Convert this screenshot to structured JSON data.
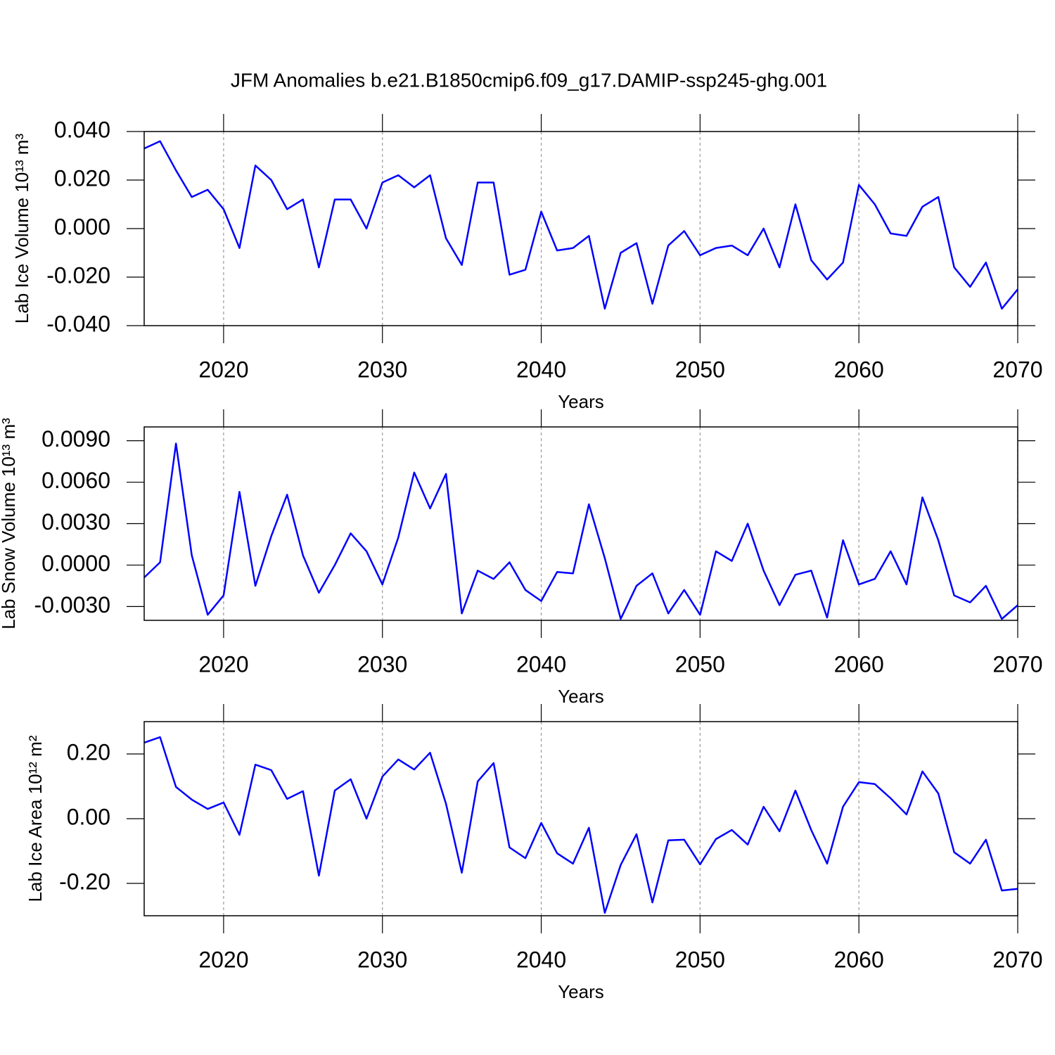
{
  "chart_data": [
    {
      "type": "line",
      "title": "JFM Anomalies b.e21.B1850cmip6.f09_g17.DAMIP-ssp245-ghg.001",
      "xlabel": "Years",
      "ylabel": "Lab Ice Volume 10¹³ m³",
      "color": "#0000ff",
      "grid": true,
      "x": [
        2015,
        2016,
        2017,
        2018,
        2019,
        2020,
        2021,
        2022,
        2023,
        2024,
        2025,
        2026,
        2027,
        2028,
        2029,
        2030,
        2031,
        2032,
        2033,
        2034,
        2035,
        2036,
        2037,
        2038,
        2039,
        2040,
        2041,
        2042,
        2043,
        2044,
        2045,
        2046,
        2047,
        2048,
        2049,
        2050,
        2051,
        2052,
        2053,
        2054,
        2055,
        2056,
        2057,
        2058,
        2059,
        2060,
        2061,
        2062,
        2063,
        2064,
        2065,
        2066,
        2067,
        2068,
        2069,
        2070
      ],
      "values": [
        0.033,
        0.036,
        0.024,
        0.013,
        0.016,
        0.008,
        -0.008,
        0.026,
        0.02,
        0.008,
        0.012,
        -0.016,
        0.012,
        0.012,
        0.0,
        0.019,
        0.022,
        0.017,
        0.022,
        -0.004,
        -0.015,
        0.019,
        0.019,
        -0.019,
        -0.017,
        0.007,
        -0.009,
        -0.008,
        -0.003,
        -0.033,
        -0.01,
        -0.006,
        -0.031,
        -0.007,
        -0.001,
        -0.011,
        -0.008,
        -0.007,
        -0.011,
        0.0,
        -0.016,
        0.01,
        -0.013,
        -0.021,
        -0.014,
        0.018,
        0.01,
        -0.002,
        -0.003,
        0.009,
        0.013,
        -0.016,
        -0.024,
        -0.014,
        -0.033,
        -0.025
      ],
      "xlim": [
        2015,
        2070
      ],
      "xticks": [
        2020,
        2030,
        2040,
        2050,
        2060,
        2070
      ],
      "ylim": [
        -0.04,
        0.04
      ],
      "yticks": [
        {
          "value": 0.04,
          "label": "0.040"
        },
        {
          "value": 0.02,
          "label": "0.020"
        },
        {
          "value": 0,
          "label": "0.000"
        },
        {
          "value": -0.02,
          "label": "-0.020"
        },
        {
          "value": -0.04,
          "label": "-0.040"
        }
      ]
    },
    {
      "type": "line",
      "xlabel": "Years",
      "ylabel": "Lab Snow Volume 10¹³ m³",
      "color": "#0000ff",
      "grid": true,
      "x": [
        2015,
        2016,
        2017,
        2018,
        2019,
        2020,
        2021,
        2022,
        2023,
        2024,
        2025,
        2026,
        2027,
        2028,
        2029,
        2030,
        2031,
        2032,
        2033,
        2034,
        2035,
        2036,
        2037,
        2038,
        2039,
        2040,
        2041,
        2042,
        2043,
        2044,
        2045,
        2046,
        2047,
        2048,
        2049,
        2050,
        2051,
        2052,
        2053,
        2054,
        2055,
        2056,
        2057,
        2058,
        2059,
        2060,
        2061,
        2062,
        2063,
        2064,
        2065,
        2066,
        2067,
        2068,
        2069,
        2070
      ],
      "values": [
        -0.0009,
        0.0002,
        0.0088,
        0.0007,
        -0.0036,
        -0.0022,
        0.0053,
        -0.0015,
        0.0021,
        0.0051,
        0.0007,
        -0.002,
        0.0,
        0.0023,
        0.001,
        -0.0014,
        0.002,
        0.0067,
        0.0041,
        0.0066,
        -0.0035,
        -0.0004,
        -0.001,
        0.0002,
        -0.0018,
        -0.0026,
        -0.0005,
        -0.0006,
        0.0044,
        0.0005,
        -0.0039,
        -0.0015,
        -0.0006,
        -0.0035,
        -0.0018,
        -0.0036,
        0.001,
        0.0003,
        0.003,
        -0.0004,
        -0.0029,
        -0.0007,
        -0.0004,
        -0.0038,
        0.0018,
        -0.0014,
        -0.001,
        0.001,
        -0.0014,
        0.0049,
        0.0018,
        -0.0022,
        -0.0027,
        -0.0015,
        -0.0039,
        -0.0029
      ],
      "xlim": [
        2015,
        2070
      ],
      "xticks": [
        2020,
        2030,
        2040,
        2050,
        2060,
        2070
      ],
      "ylim": [
        -0.004,
        0.01
      ],
      "yticks": [
        {
          "value": 0.009,
          "label": "0.0090"
        },
        {
          "value": 0.006,
          "label": "0.0060"
        },
        {
          "value": 0.003,
          "label": "0.0030"
        },
        {
          "value": 0,
          "label": "0.0000"
        },
        {
          "value": -0.003,
          "label": "-0.0030"
        }
      ]
    },
    {
      "type": "line",
      "xlabel": "Years",
      "ylabel": "Lab Ice Area 10¹² m²",
      "color": "#0000ff",
      "grid": true,
      "x": [
        2015,
        2016,
        2017,
        2018,
        2019,
        2020,
        2021,
        2022,
        2023,
        2024,
        2025,
        2026,
        2027,
        2028,
        2029,
        2030,
        2031,
        2032,
        2033,
        2034,
        2035,
        2036,
        2037,
        2038,
        2039,
        2040,
        2041,
        2042,
        2043,
        2044,
        2045,
        2046,
        2047,
        2048,
        2049,
        2050,
        2051,
        2052,
        2053,
        2054,
        2055,
        2056,
        2057,
        2058,
        2059,
        2060,
        2061,
        2062,
        2063,
        2064,
        2065,
        2066,
        2067,
        2068,
        2069,
        2070
      ],
      "values": [
        0.235,
        0.252,
        0.098,
        0.059,
        0.03,
        0.05,
        -0.05,
        0.167,
        0.15,
        0.061,
        0.085,
        -0.176,
        0.087,
        0.122,
        0.0,
        0.13,
        0.183,
        0.152,
        0.204,
        0.046,
        -0.167,
        0.115,
        0.172,
        -0.089,
        -0.122,
        -0.013,
        -0.107,
        -0.139,
        -0.028,
        -0.291,
        -0.143,
        -0.048,
        -0.259,
        -0.067,
        -0.065,
        -0.141,
        -0.063,
        -0.035,
        -0.08,
        0.037,
        -0.039,
        0.087,
        -0.035,
        -0.139,
        0.037,
        0.113,
        0.107,
        0.063,
        0.013,
        0.146,
        0.078,
        -0.104,
        -0.139,
        -0.065,
        -0.222,
        -0.217
      ],
      "xlim": [
        2015,
        2070
      ],
      "xticks": [
        2020,
        2030,
        2040,
        2050,
        2060,
        2070
      ],
      "ylim": [
        -0.3,
        0.3
      ],
      "yticks": [
        {
          "value": 0.2,
          "label": "0.20"
        },
        {
          "value": 0,
          "label": "0.00"
        },
        {
          "value": -0.2,
          "label": "-0.20"
        }
      ]
    }
  ]
}
